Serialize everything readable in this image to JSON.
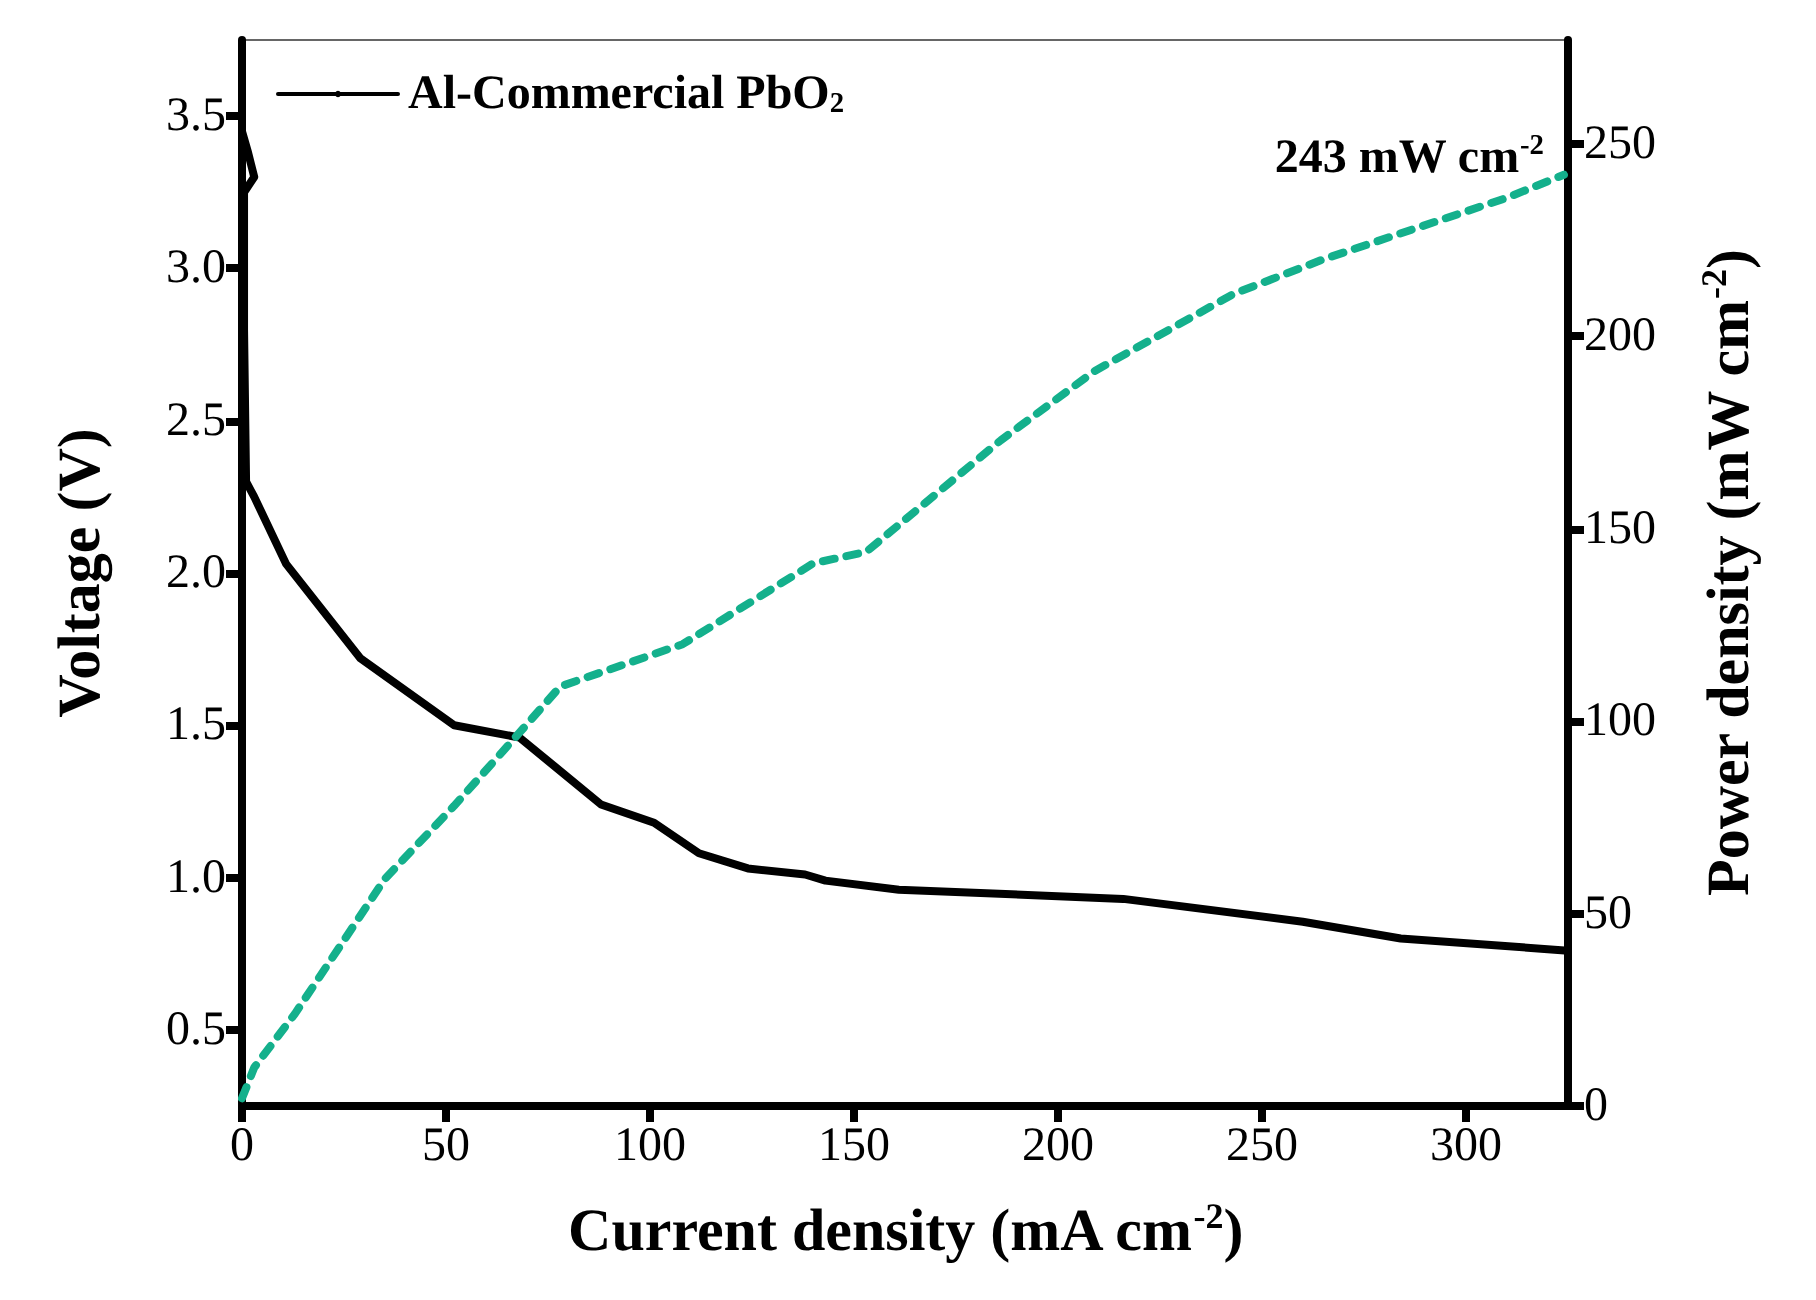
{
  "chart_data": {
    "type": "line",
    "xlabel": "Current density (mA cm$^{-2}$)",
    "ylabel": "Voltage (V)",
    "y2label": "Power density (mW cm$^{-2}$)",
    "xlim": [
      0,
      325
    ],
    "xticks": [
      0,
      50,
      100,
      150,
      200,
      250,
      300
    ],
    "ylim": [
      0.25,
      3.75
    ],
    "yticks": [
      0.5,
      {
        "value": 1,
        "label": "1.0"
      },
      1.5,
      {
        "value": 2,
        "label": "2.0"
      },
      2.5,
      {
        "value": 3,
        "label": "3.0"
      },
      3.5
    ],
    "y2lim": [
      0,
      277
    ],
    "y2ticks": [
      0,
      50,
      100,
      150,
      200,
      250
    ],
    "legend": "top left",
    "grid": false,
    "marker": "none",
    "annotations": [
      "243 mW cm$^{-2}$"
    ],
    "series": [
      {
        "name": "Al-Commercial PbO$_{2}$",
        "color": "#000000",
        "line_style": "solid",
        "x": [
          0,
          1.5,
          3,
          1,
          0.5,
          0.5,
          1,
          3,
          10.8,
          29,
          52,
          68,
          88,
          101,
          112,
          124,
          138,
          143,
          161,
          216,
          260,
          284,
          325
        ],
        "values": [
          3.45,
          3.38,
          3.3,
          3.26,
          3.25,
          2.8,
          2.3,
          2.25,
          2.03,
          1.72,
          1.5,
          1.46,
          1.24,
          1.18,
          1.08,
          1.03,
          1.01,
          0.99,
          0.96,
          0.93,
          0.855,
          0.8,
          0.76
        ]
      },
      {
        "type": "line",
        "axis": "y2",
        "color": "#14b08c",
        "line_style": "dashed",
        "x": [
          0,
          3,
          13,
          35,
          52,
          68,
          78,
          108,
          140,
          153,
          186,
          209,
          243,
          265,
          310,
          324
        ],
        "values": [
          2,
          10,
          24,
          59,
          78,
          97,
          109,
          120,
          141,
          144,
          173,
          191,
          211,
          220,
          236,
          242
        ]
      }
    ]
  }
}
